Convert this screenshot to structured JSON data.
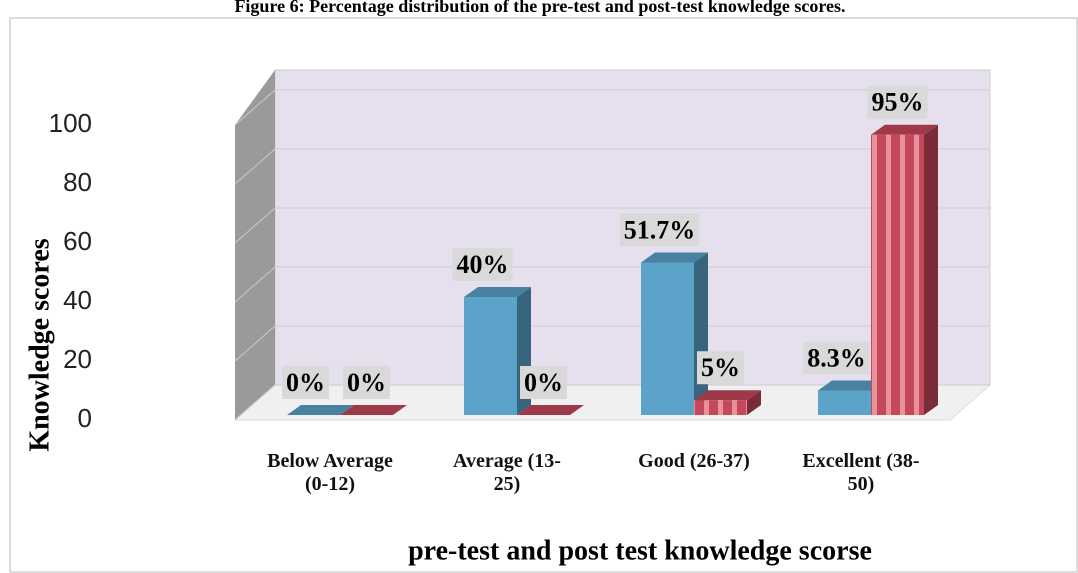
{
  "chart_data": {
    "type": "bar3d",
    "title": "Figure 6: Percentage distribution of the pre-test and post-test knowledge scores.",
    "ylabel": "Knowledge scores",
    "xlabel": "pre-test and post test knowledge scorse",
    "categories": [
      "Below Average (0-12)",
      "Average (13-25)",
      "Good (26-37)",
      "Excellent (38-50)"
    ],
    "series": [
      {
        "color": "#5ba3c9",
        "values": [
          0,
          40,
          51.7,
          8.3
        ],
        "value_labels": [
          "0%",
          "40%",
          "51.7%",
          "8.3%"
        ]
      },
      {
        "color": "#c4475a",
        "values": [
          0,
          0,
          5,
          95
        ],
        "value_labels": [
          "0%",
          "0%",
          "5%",
          "95%"
        ]
      }
    ],
    "ylim": [
      0,
      100
    ],
    "yticks": [
      0,
      20,
      40,
      60,
      80,
      100
    ],
    "grid": true
  }
}
